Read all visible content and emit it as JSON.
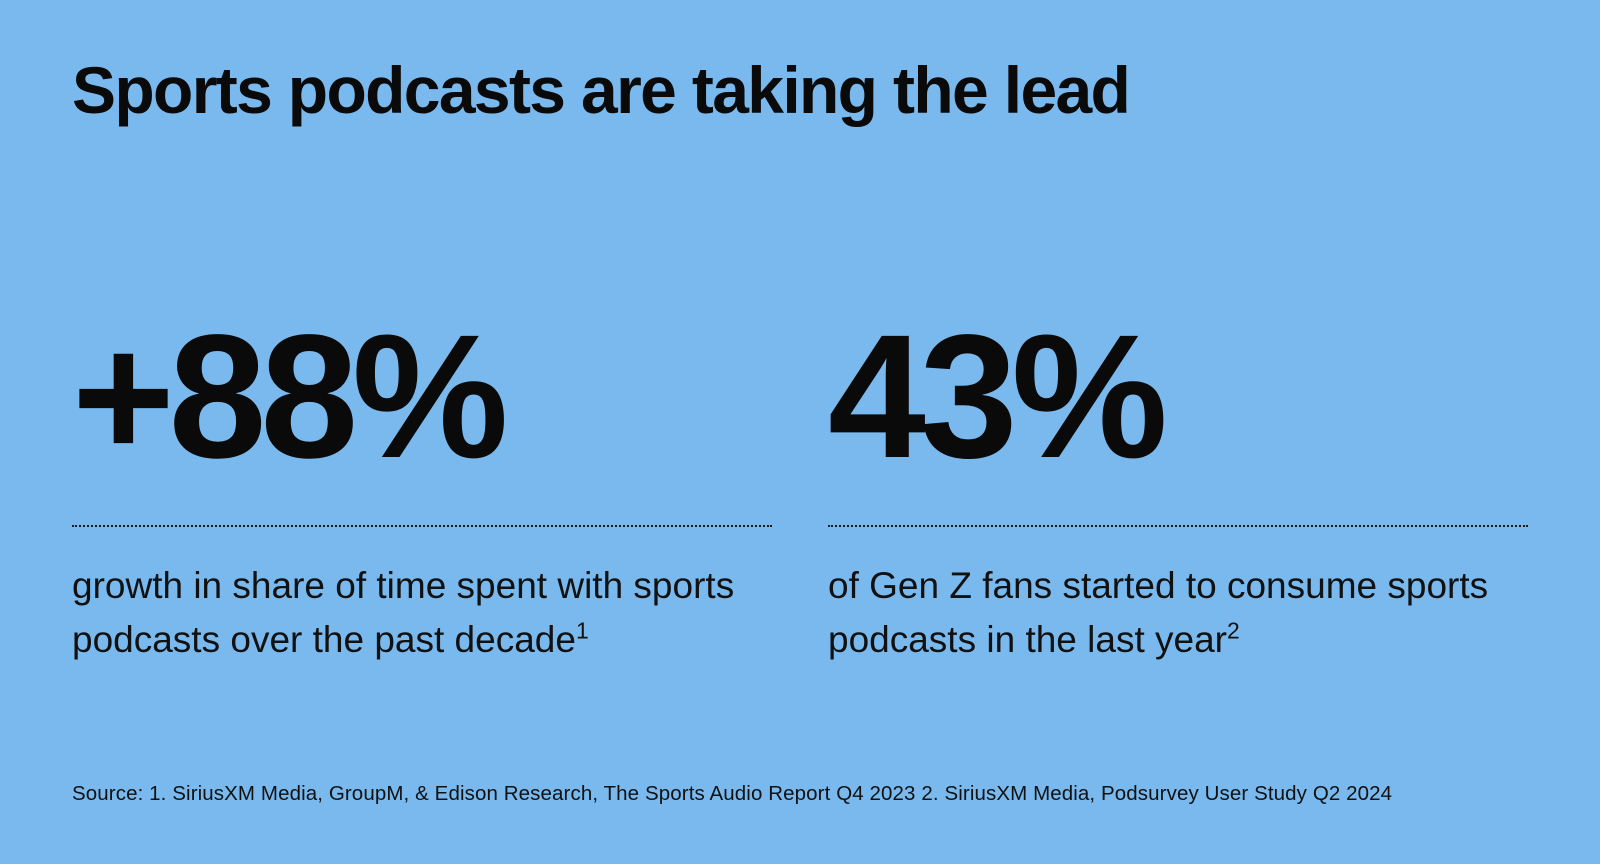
{
  "slide": {
    "title": "Sports podcasts are taking the lead",
    "stats": [
      {
        "value": "+88%",
        "description": "growth in share of time spent with sports podcasts over the past decade",
        "footnote_ref": "1"
      },
      {
        "value": "43%",
        "description": "of Gen Z fans started to consume sports podcasts in the last year",
        "footnote_ref": "2"
      }
    ],
    "source": "Source: 1. SiriusXM Media, GroupM, & Edison Research, The Sports Audio Report Q4 2023 2. SiriusXM Media, Podsurvey User Study Q2 2024",
    "colors": {
      "background": "#79B9EE",
      "text": "#0A0A0A"
    }
  }
}
